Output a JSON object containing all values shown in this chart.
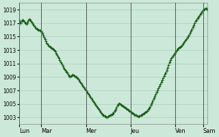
{
  "bg_color": "#cce8d8",
  "grid_color": "#aaccbb",
  "line_color": "#1a5c1a",
  "ylim": [
    1002,
    1020
  ],
  "yticks": [
    1003,
    1005,
    1007,
    1009,
    1011,
    1013,
    1015,
    1017,
    1019
  ],
  "day_labels": [
    "Lun",
    "Mar",
    "Mer",
    "Jeu",
    "Ven",
    "Sam"
  ],
  "day_positions": [
    0,
    24,
    72,
    120,
    168,
    198
  ],
  "data_y": [
    1017.5,
    1017.2,
    1017.0,
    1017.3,
    1017.5,
    1017.4,
    1017.2,
    1017.0,
    1016.9,
    1017.1,
    1017.4,
    1017.6,
    1017.5,
    1017.3,
    1017.1,
    1016.9,
    1016.7,
    1016.5,
    1016.3,
    1016.2,
    1016.1,
    1016.0,
    1016.0,
    1015.9,
    1015.8,
    1015.5,
    1015.2,
    1014.9,
    1014.6,
    1014.3,
    1014.0,
    1013.8,
    1013.6,
    1013.5,
    1013.4,
    1013.3,
    1013.2,
    1013.1,
    1013.0,
    1012.8,
    1012.5,
    1012.3,
    1012.0,
    1011.8,
    1011.5,
    1011.2,
    1011.0,
    1010.7,
    1010.4,
    1010.2,
    1010.0,
    1009.8,
    1009.6,
    1009.3,
    1009.1,
    1009.0,
    1009.1,
    1009.2,
    1009.3,
    1009.2,
    1009.1,
    1009.0,
    1008.9,
    1008.8,
    1008.6,
    1008.4,
    1008.2,
    1008.0,
    1007.8,
    1007.6,
    1007.4,
    1007.2,
    1007.0,
    1006.8,
    1006.6,
    1006.4,
    1006.2,
    1006.0,
    1005.8,
    1005.6,
    1005.4,
    1005.2,
    1005.0,
    1004.8,
    1004.6,
    1004.4,
    1004.2,
    1004.0,
    1003.8,
    1003.6,
    1003.4,
    1003.3,
    1003.2,
    1003.1,
    1003.0,
    1003.0,
    1003.1,
    1003.2,
    1003.3,
    1003.4,
    1003.5,
    1003.6,
    1003.8,
    1004.0,
    1004.2,
    1004.5,
    1004.8,
    1005.0,
    1005.1,
    1005.0,
    1004.9,
    1004.8,
    1004.7,
    1004.6,
    1004.5,
    1004.4,
    1004.3,
    1004.2,
    1004.1,
    1004.0,
    1003.9,
    1003.8,
    1003.7,
    1003.6,
    1003.5,
    1003.4,
    1003.3,
    1003.2,
    1003.1,
    1003.1,
    1003.2,
    1003.3,
    1003.4,
    1003.5,
    1003.6,
    1003.7,
    1003.8,
    1003.9,
    1004.0,
    1004.2,
    1004.4,
    1004.6,
    1004.9,
    1005.2,
    1005.5,
    1005.8,
    1006.1,
    1006.4,
    1006.7,
    1007.0,
    1007.3,
    1007.6,
    1007.9,
    1008.2,
    1008.5,
    1008.8,
    1009.1,
    1009.4,
    1009.7,
    1010.0,
    1010.4,
    1010.8,
    1011.2,
    1011.5,
    1011.8,
    1012.0,
    1012.2,
    1012.4,
    1012.6,
    1012.8,
    1013.0,
    1013.2,
    1013.3,
    1013.4,
    1013.5,
    1013.6,
    1013.8,
    1014.0,
    1014.2,
    1014.4,
    1014.6,
    1014.8,
    1015.0,
    1015.2,
    1015.5,
    1015.8,
    1016.1,
    1016.4,
    1016.7,
    1017.0,
    1017.3,
    1017.5,
    1017.7,
    1017.9,
    1018.1,
    1018.3,
    1018.5,
    1018.7,
    1018.9,
    1019.0,
    1019.1,
    1019.2,
    1019.1,
    1019.0
  ]
}
